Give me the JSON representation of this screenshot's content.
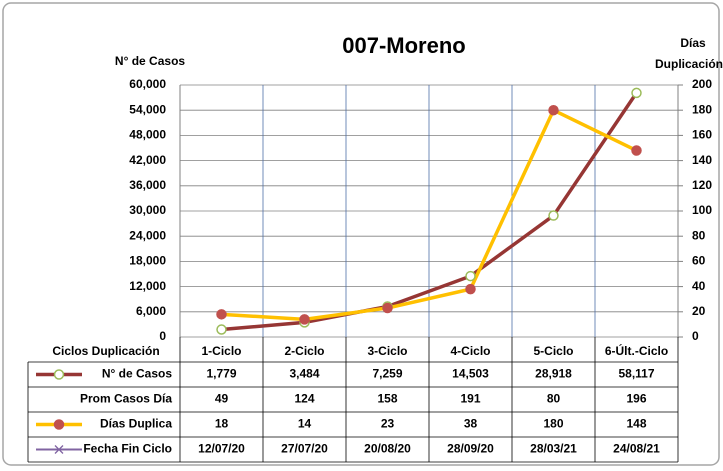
{
  "chart_data": {
    "type": "line",
    "title": "007-Moreno",
    "ylabel": "N° de Casos",
    "y2label": [
      "Días",
      "Duplicación"
    ],
    "xlabel": "Ciclos Duplicación",
    "categories": [
      "1-Ciclo",
      "2-Ciclo",
      "3-Ciclo",
      "4-Ciclo",
      "5-Ciclo",
      "6-Últ.-Ciclo"
    ],
    "series": [
      {
        "name": "N° de Casos",
        "color": "#963634",
        "marker_color": "#9BBB59",
        "marker_fill": "#ffffff",
        "axis": "y",
        "values": [
          1779,
          3484,
          7259,
          14503,
          28918,
          58117
        ],
        "value_labels": [
          "1,779",
          "3,484",
          "7,259",
          "14,503",
          "28,918",
          "58,117"
        ]
      },
      {
        "name": "Prom Casos Día",
        "values": [
          49,
          124,
          158,
          191,
          80,
          196
        ]
      },
      {
        "name": "Días Duplica",
        "color": "#FFC000",
        "marker_color": "#C0504D",
        "marker_fill": "#C0504D",
        "axis": "y2",
        "values": [
          18,
          14,
          23,
          38,
          180,
          148
        ]
      },
      {
        "name": "Fecha Fin Ciclo",
        "color": "#8064A2",
        "values": [
          "12/07/20",
          "27/07/20",
          "20/08/20",
          "28/09/20",
          "28/03/21",
          "24/08/21"
        ]
      }
    ],
    "ylim": [
      0,
      60000
    ],
    "yticks": [
      0,
      {
        "value": 6000,
        "label": "6,000"
      },
      {
        "value": 12000,
        "label": "12,000"
      },
      {
        "value": 18000,
        "label": "18,000"
      },
      {
        "value": 24000,
        "label": "24,000"
      },
      {
        "value": 30000,
        "label": "30,000"
      },
      {
        "value": 36000,
        "label": "36,000"
      },
      {
        "value": 42000,
        "label": "42,000"
      },
      {
        "value": 48000,
        "label": "48,000"
      },
      {
        "value": 54000,
        "label": "54,000"
      },
      {
        "value": 60000,
        "label": "60,000"
      }
    ],
    "y2lim": [
      0,
      200
    ],
    "y2ticks": [
      0,
      20,
      40,
      60,
      80,
      100,
      120,
      140,
      160,
      180,
      200
    ],
    "grid": true
  }
}
